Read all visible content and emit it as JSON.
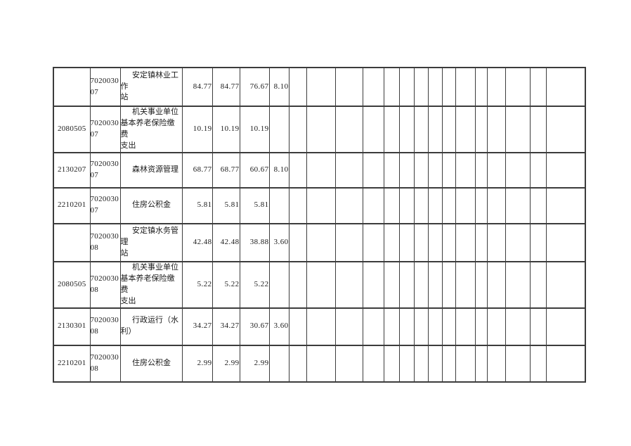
{
  "page": {
    "background_color": "#ffffff"
  },
  "table": {
    "grid_color": "#3c3c3c",
    "text_color": "#1b1b1b",
    "total_columns": 22,
    "populated_columns": 7,
    "empty_trailing_columns": 15,
    "column_semantics": [
      "expense-function-code",
      "unit-budget-code",
      "item-name",
      "amount-total",
      "amount-2",
      "amount-3",
      "amount-4"
    ],
    "rows": [
      {
        "function_code": "",
        "unit_code": "7020030\n07",
        "item_name": "安定镇林业工作\n站",
        "amounts": [
          "84.77",
          "84.77",
          "76.67",
          "8.10"
        ]
      },
      {
        "function_code": "2080505",
        "unit_code": "7020030\n07",
        "item_name": "机关事业单位\n基本养老保险缴费\n支出",
        "amounts": [
          "10.19",
          "10.19",
          "10.19",
          ""
        ]
      },
      {
        "function_code": "2130207",
        "unit_code": "7020030\n07",
        "item_name": "森林资源管理",
        "amounts": [
          "68.77",
          "68.77",
          "60.67",
          "8.10"
        ]
      },
      {
        "function_code": "2210201",
        "unit_code": "7020030\n07",
        "item_name": "住房公积金",
        "amounts": [
          "5.81",
          "5.81",
          "5.81",
          ""
        ]
      },
      {
        "function_code": "",
        "unit_code": "7020030\n08",
        "item_name": "安定镇水务管理\n站",
        "amounts": [
          "42.48",
          "42.48",
          "38.88",
          "3.60"
        ]
      },
      {
        "function_code": "2080505",
        "unit_code": "7020030\n08",
        "item_name": "机关事业单位\n基本养老保险缴费\n支出",
        "amounts": [
          "5.22",
          "5.22",
          "5.22",
          ""
        ]
      },
      {
        "function_code": "2130301",
        "unit_code": "7020030\n08",
        "item_name": "行政运行（水\n利）",
        "amounts": [
          "34.27",
          "34.27",
          "30.67",
          "3.60"
        ]
      },
      {
        "function_code": "2210201",
        "unit_code": "7020030\n08",
        "item_name": "住房公积金",
        "amounts": [
          "2.99",
          "2.99",
          "2.99",
          ""
        ]
      }
    ]
  }
}
